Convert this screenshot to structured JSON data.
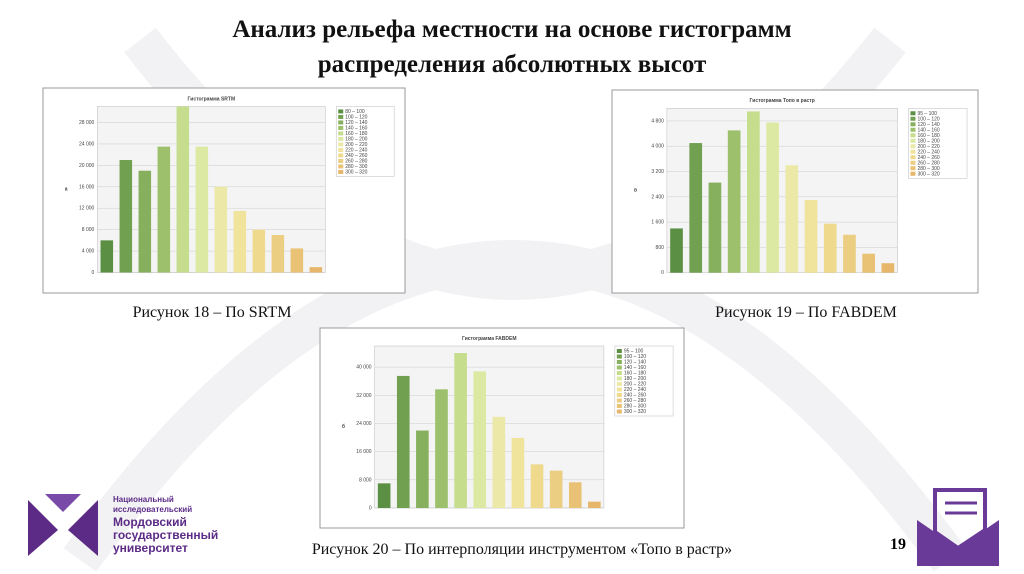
{
  "title_line1": "Анализ рельефа местности на основе гистограмм",
  "title_line2": "распределения абсолютных высот",
  "captions": [
    "Рисунок 18 – По SRTM",
    "Рисунок 19 – По FABDEM",
    "Рисунок 20 – По интерполяции инструментом «Топо в растр»"
  ],
  "page_number": "19",
  "logo": {
    "line1": "Национальный",
    "line2": "исследовательский",
    "line3": "Мордовский",
    "line4": "государственный",
    "line5": "университет"
  },
  "chart_data": [
    {
      "type": "bar",
      "letter": "а",
      "title": "Гистограмма SRTM",
      "categories": [
        "80 – 100",
        "100 – 120",
        "120 – 140",
        "140 – 160",
        "160 – 180",
        "180 – 200",
        "200 – 220",
        "220 – 240",
        "240 – 260",
        "260 – 280",
        "280 – 300",
        "300 – 320"
      ],
      "values": [
        6000,
        21000,
        19000,
        23500,
        31000,
        23500,
        16000,
        11500,
        8000,
        7000,
        4500,
        1000
      ],
      "colors": [
        "#5b8f44",
        "#71a050",
        "#86b05d",
        "#9cc06b",
        "#c5dd8d",
        "#dbe9a2",
        "#ece9a8",
        "#f0e39b",
        "#eed98d",
        "#ecce82",
        "#e9c276",
        "#e6b76b"
      ],
      "ylim": [
        0,
        31000
      ],
      "yticks": [
        0,
        {
          "value": 4000,
          "label": "4 000"
        },
        {
          "value": 8000,
          "label": "8 000"
        },
        {
          "value": 12000,
          "label": "12 000"
        },
        {
          "value": 16000,
          "label": "16 000"
        },
        {
          "value": 20000,
          "label": "20 000"
        },
        {
          "value": 24000,
          "label": "24 000"
        },
        {
          "value": 28000,
          "label": "28 000"
        }
      ],
      "grid": true
    },
    {
      "type": "bar",
      "letter": "в",
      "title": "Гистограмма Топо в растр",
      "categories": [
        "95 – 100",
        "100 – 120",
        "120 – 140",
        "140 – 160",
        "160 – 180",
        "180 – 200",
        "200 – 220",
        "220 – 240",
        "240 – 260",
        "260 – 280",
        "280 – 300",
        "300 – 320"
      ],
      "values": [
        1400,
        4100,
        2850,
        4500,
        5100,
        4750,
        3400,
        2300,
        1550,
        1200,
        600,
        300
      ],
      "colors": [
        "#5b8f44",
        "#71a050",
        "#86b05d",
        "#9cc06b",
        "#c5dd8d",
        "#dbe9a2",
        "#ece9a8",
        "#f0e39b",
        "#eed98d",
        "#ecce82",
        "#e9c276",
        "#e6b76b"
      ],
      "ylim": [
        0,
        5200
      ],
      "yticks": [
        0,
        800,
        {
          "value": 1600,
          "label": "1 600"
        },
        {
          "value": 2400,
          "label": "2 400"
        },
        {
          "value": 3200,
          "label": "3 200"
        },
        {
          "value": 4000,
          "label": "4 000"
        },
        {
          "value": 4800,
          "label": "4 800"
        }
      ],
      "grid": true
    },
    {
      "type": "bar",
      "letter": "б",
      "title": "Гистограмма FABDEM",
      "categories": [
        "95 – 100",
        "100 – 120",
        "120 – 140",
        "140 – 160",
        "160 – 180",
        "180 – 200",
        "200 – 220",
        "220 – 240",
        "240 – 260",
        "260 – 280",
        "280 – 300",
        "300 – 320"
      ],
      "values": [
        7000,
        37500,
        22000,
        33700,
        44000,
        38800,
        25900,
        19900,
        12400,
        10600,
        7300,
        1800
      ],
      "colors": [
        "#5b8f44",
        "#71a050",
        "#86b05d",
        "#9cc06b",
        "#c5dd8d",
        "#dbe9a2",
        "#ece9a8",
        "#f0e39b",
        "#eed98d",
        "#ecce82",
        "#e9c276",
        "#e6b76b"
      ],
      "ylim": [
        0,
        46000
      ],
      "yticks": [
        0,
        {
          "value": 8000,
          "label": "8 000"
        },
        {
          "value": 16000,
          "label": "16 000"
        },
        {
          "value": 24000,
          "label": "24 000"
        },
        {
          "value": 32000,
          "label": "32 000"
        },
        {
          "value": 40000,
          "label": "40 000"
        }
      ],
      "grid": true
    }
  ]
}
